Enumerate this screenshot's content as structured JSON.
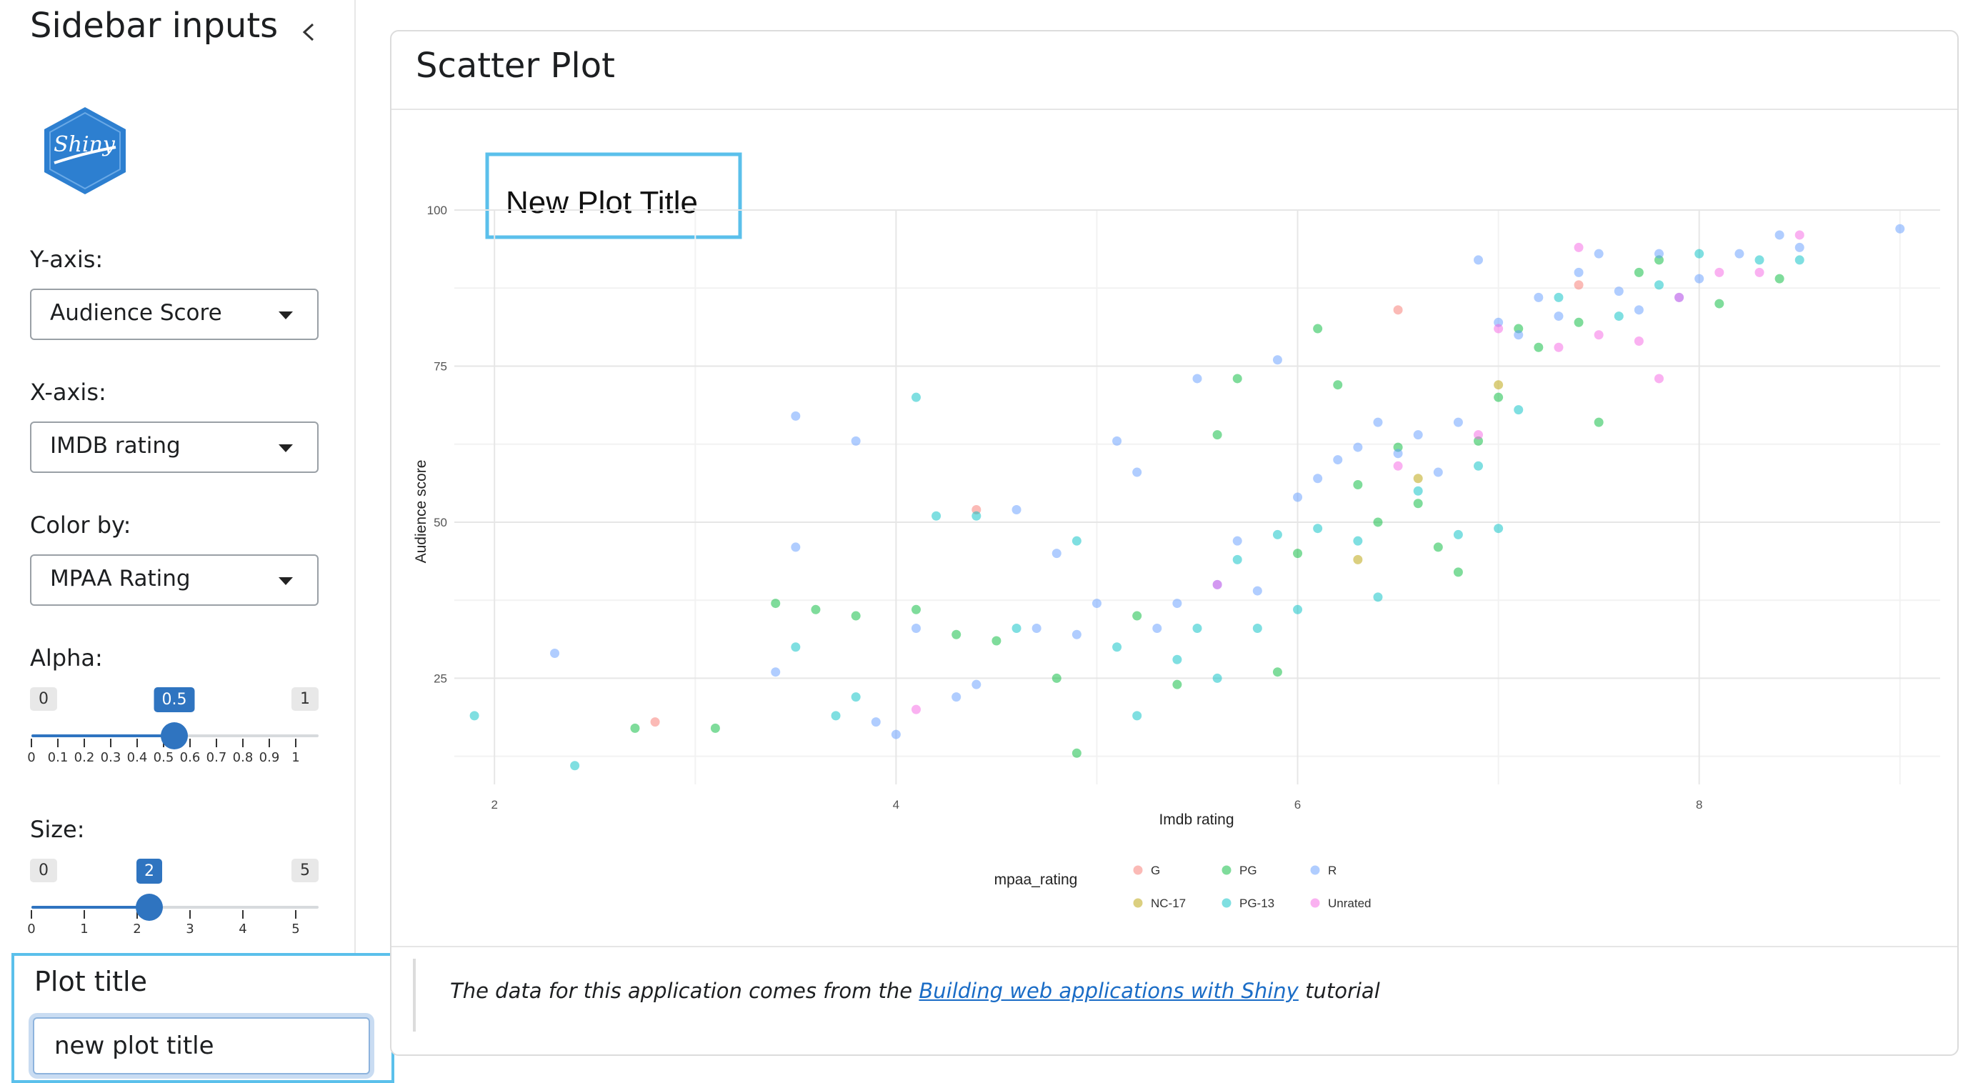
{
  "sidebar": {
    "title": "Sidebar inputs",
    "logo_text": "Shiny",
    "y_axis": {
      "label": "Y-axis:",
      "value": "Audience Score"
    },
    "x_axis": {
      "label": "X-axis:",
      "value": "IMDB rating"
    },
    "color_by": {
      "label": "Color by:",
      "value": "MPAA Rating"
    },
    "alpha": {
      "label": "Alpha:",
      "min": "0",
      "max": "1",
      "value": "0.5",
      "ticks": [
        "0",
        "0.1",
        "0.2",
        "0.3",
        "0.4",
        "0.5",
        "0.6",
        "0.7",
        "0.8",
        "0.9",
        "1"
      ]
    },
    "size": {
      "label": "Size:",
      "min": "0",
      "max": "5",
      "value": "2",
      "ticks": [
        "0",
        "1",
        "2",
        "3",
        "4",
        "5"
      ]
    },
    "plot_title": {
      "label": "Plot title",
      "value": "new plot title"
    }
  },
  "card": {
    "title": "Scatter Plot",
    "footer": {
      "prefix": "The data for this application comes from the ",
      "link": "Building web applications with Shiny",
      "suffix": " tutorial"
    }
  },
  "colors": {
    "accent": "#2f74c0",
    "highlight": "#5bc0eb",
    "G": "#f8766d",
    "NC-17": "#b79f00",
    "PG": "#00ba38",
    "PG-13": "#00bfc4",
    "R": "#619cff",
    "Unrated": "#f564e3"
  },
  "chart_data": {
    "type": "scatter",
    "title": "New Plot Title",
    "xlabel": "Imdb rating",
    "ylabel": "Audience score",
    "xlim": [
      1.8,
      9.2
    ],
    "ylim": [
      8,
      100
    ],
    "x_ticks": [
      "2",
      "4",
      "6",
      "8"
    ],
    "y_ticks": [
      "25",
      "50",
      "75",
      "100"
    ],
    "alpha": 0.5,
    "grid": true,
    "legend_title": "mpaa_rating",
    "legend_position": "bottom",
    "series": [
      {
        "name": "G",
        "points": [
          [
            2.8,
            18
          ],
          [
            4.4,
            52
          ],
          [
            6.5,
            84
          ],
          [
            7.4,
            88
          ]
        ]
      },
      {
        "name": "NC-17",
        "points": [
          [
            6.6,
            57
          ],
          [
            6.3,
            44
          ],
          [
            7.0,
            72
          ]
        ]
      },
      {
        "name": "PG",
        "points": [
          [
            2.7,
            17
          ],
          [
            3.1,
            17
          ],
          [
            3.4,
            37
          ],
          [
            3.6,
            36
          ],
          [
            3.8,
            35
          ],
          [
            4.1,
            36
          ],
          [
            4.3,
            32
          ],
          [
            4.5,
            31
          ],
          [
            4.8,
            25
          ],
          [
            4.9,
            13
          ],
          [
            5.2,
            35
          ],
          [
            5.4,
            24
          ],
          [
            5.6,
            64
          ],
          [
            5.7,
            73
          ],
          [
            5.9,
            26
          ],
          [
            6.0,
            45
          ],
          [
            6.2,
            72
          ],
          [
            6.3,
            56
          ],
          [
            6.4,
            50
          ],
          [
            6.5,
            62
          ],
          [
            6.7,
            46
          ],
          [
            6.8,
            42
          ],
          [
            6.9,
            63
          ],
          [
            7.0,
            70
          ],
          [
            7.2,
            78
          ],
          [
            7.4,
            82
          ],
          [
            7.5,
            66
          ],
          [
            7.7,
            90
          ],
          [
            7.8,
            92
          ],
          [
            8.1,
            85
          ],
          [
            8.4,
            89
          ],
          [
            6.1,
            81
          ],
          [
            6.6,
            53
          ],
          [
            7.1,
            81
          ]
        ]
      },
      {
        "name": "PG-13",
        "points": [
          [
            1.9,
            19
          ],
          [
            2.4,
            11
          ],
          [
            3.5,
            30
          ],
          [
            3.7,
            19
          ],
          [
            3.8,
            22
          ],
          [
            4.1,
            70
          ],
          [
            4.2,
            51
          ],
          [
            4.4,
            51
          ],
          [
            4.6,
            33
          ],
          [
            4.9,
            47
          ],
          [
            5.1,
            30
          ],
          [
            5.2,
            19
          ],
          [
            5.4,
            28
          ],
          [
            5.5,
            33
          ],
          [
            5.6,
            25
          ],
          [
            5.7,
            44
          ],
          [
            5.8,
            33
          ],
          [
            5.9,
            48
          ],
          [
            6.0,
            36
          ],
          [
            6.1,
            49
          ],
          [
            6.3,
            47
          ],
          [
            6.4,
            38
          ],
          [
            6.6,
            55
          ],
          [
            6.8,
            48
          ],
          [
            6.9,
            59
          ],
          [
            7.0,
            49
          ],
          [
            7.1,
            68
          ],
          [
            7.3,
            86
          ],
          [
            7.6,
            83
          ],
          [
            7.8,
            88
          ],
          [
            8.0,
            93
          ],
          [
            8.3,
            92
          ],
          [
            8.5,
            92
          ]
        ]
      },
      {
        "name": "R",
        "points": [
          [
            2.3,
            29
          ],
          [
            3.4,
            26
          ],
          [
            3.5,
            46
          ],
          [
            3.8,
            63
          ],
          [
            4.1,
            33
          ],
          [
            4.3,
            22
          ],
          [
            4.4,
            24
          ],
          [
            4.6,
            52
          ],
          [
            4.7,
            33
          ],
          [
            4.8,
            45
          ],
          [
            4.9,
            32
          ],
          [
            5.0,
            37
          ],
          [
            5.1,
            63
          ],
          [
            5.2,
            58
          ],
          [
            5.3,
            33
          ],
          [
            5.4,
            37
          ],
          [
            5.5,
            73
          ],
          [
            5.6,
            40
          ],
          [
            5.7,
            47
          ],
          [
            5.8,
            39
          ],
          [
            5.9,
            76
          ],
          [
            6.0,
            54
          ],
          [
            6.1,
            57
          ],
          [
            6.2,
            60
          ],
          [
            6.3,
            62
          ],
          [
            6.4,
            66
          ],
          [
            6.5,
            61
          ],
          [
            6.6,
            64
          ],
          [
            6.7,
            58
          ],
          [
            6.8,
            66
          ],
          [
            6.9,
            92
          ],
          [
            7.0,
            82
          ],
          [
            7.1,
            80
          ],
          [
            7.2,
            86
          ],
          [
            7.3,
            83
          ],
          [
            7.4,
            90
          ],
          [
            7.5,
            93
          ],
          [
            7.6,
            87
          ],
          [
            7.7,
            84
          ],
          [
            7.8,
            93
          ],
          [
            7.9,
            86
          ],
          [
            8.0,
            89
          ],
          [
            8.2,
            93
          ],
          [
            8.4,
            96
          ],
          [
            8.5,
            94
          ],
          [
            9.0,
            97
          ],
          [
            3.5,
            67
          ],
          [
            3.9,
            18
          ],
          [
            4.0,
            16
          ]
        ]
      },
      {
        "name": "Unrated",
        "points": [
          [
            4.1,
            20
          ],
          [
            5.6,
            40
          ],
          [
            6.5,
            59
          ],
          [
            6.9,
            64
          ],
          [
            7.0,
            81
          ],
          [
            7.3,
            78
          ],
          [
            7.4,
            94
          ],
          [
            7.5,
            80
          ],
          [
            7.7,
            79
          ],
          [
            7.9,
            86
          ],
          [
            8.1,
            90
          ],
          [
            8.3,
            90
          ],
          [
            8.5,
            96
          ],
          [
            7.8,
            73
          ]
        ]
      }
    ]
  }
}
